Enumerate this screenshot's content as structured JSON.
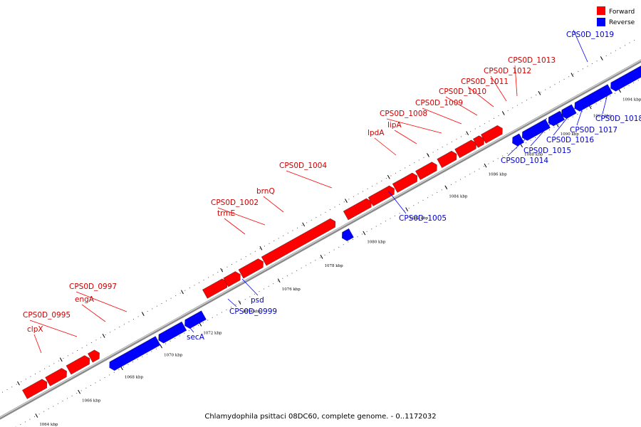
{
  "legend": {
    "forward": {
      "label": "Forward",
      "color": "#ff0000"
    },
    "reverse": {
      "label": "Reverse",
      "color": "#0000ff"
    }
  },
  "caption": "Chlamydophila psittaci 08DC60, complete genome. - 0..1172032",
  "axis": {
    "unit": "kbp",
    "major_ticks": [
      "1064 kbp",
      "1066 kbp",
      "1068 kbp",
      "1070 kbp",
      "1072 kbp",
      "1074 kbp",
      "1076 kbp",
      "1078 kbp",
      "1080 kbp",
      "1082 kbp",
      "1084 kbp",
      "1086 kbp",
      "1088 kbp",
      "1090 kbp",
      "1092 kbp",
      "1094 kbp"
    ]
  },
  "genes": [
    {
      "label": "clpX",
      "strand": "forward"
    },
    {
      "label": "CPS0D_0995",
      "strand": "forward"
    },
    {
      "label": "engA",
      "strand": "forward"
    },
    {
      "label": "CPS0D_0997",
      "strand": "forward"
    },
    {
      "label": "secA",
      "strand": "reverse"
    },
    {
      "label": "CPS0D_0999",
      "strand": "reverse"
    },
    {
      "label": "psd",
      "strand": "reverse"
    },
    {
      "label": "trmE",
      "strand": "forward"
    },
    {
      "label": "CPS0D_1002",
      "strand": "forward"
    },
    {
      "label": "brnQ",
      "strand": "forward"
    },
    {
      "label": "CPS0D_1004",
      "strand": "forward"
    },
    {
      "label": "CPS0D_1005",
      "strand": "reverse"
    },
    {
      "label": "lpdA",
      "strand": "forward"
    },
    {
      "label": "lipA",
      "strand": "forward"
    },
    {
      "label": "CPS0D_1008",
      "strand": "forward"
    },
    {
      "label": "CPS0D_1009",
      "strand": "forward"
    },
    {
      "label": "CPS0D_1010",
      "strand": "forward"
    },
    {
      "label": "CPS0D_1011",
      "strand": "forward"
    },
    {
      "label": "CPS0D_1012",
      "strand": "forward"
    },
    {
      "label": "CPS0D_1013",
      "strand": "forward"
    },
    {
      "label": "CPS0D_1014",
      "strand": "reverse"
    },
    {
      "label": "CPS0D_1015",
      "strand": "reverse"
    },
    {
      "label": "CPS0D_1016",
      "strand": "reverse"
    },
    {
      "label": "CPS0D_1017",
      "strand": "reverse"
    },
    {
      "label": "CPS0D_1018",
      "strand": "reverse"
    },
    {
      "label": "CPS0D_1019",
      "strand": "reverse"
    }
  ]
}
